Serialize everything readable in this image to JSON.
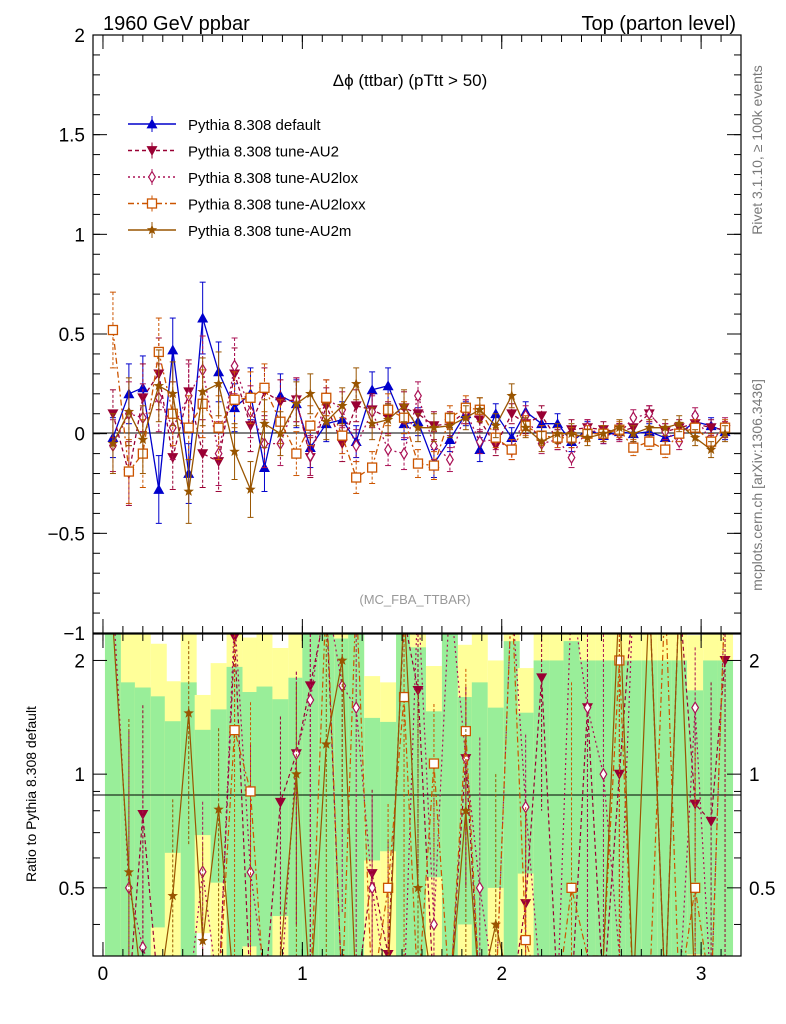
{
  "header": {
    "left": "1960 GeV ppbar",
    "right": "Top (parton level)"
  },
  "side": {
    "rivet": "Rivet 3.1.10, ≥ 100k events",
    "mcplots": "mcplots.cern.ch [arXiv:1306.3436]"
  },
  "chart_data": {
    "type": "line",
    "title": "Δϕ (ttbar) (pTtt > 50)",
    "watermark": "(MC_FBA_TTBAR)",
    "xlim": [
      -0.05,
      3.2
    ],
    "ylim": [
      -1.0,
      2.0
    ],
    "ratio_ylim": [
      0.33,
      2.35
    ],
    "ratio_ylabel": "Ratio to Pythia 8.308 default",
    "x_ticks": [
      "0",
      "1",
      "2",
      "3"
    ],
    "y_ticks": [
      "−1",
      "−0.5",
      "0",
      "0.5",
      "1",
      "1.5",
      "2"
    ],
    "ratio_ticks": [
      "0.5",
      "1",
      "2"
    ],
    "x": [
      0.05,
      0.13,
      0.2,
      0.28,
      0.35,
      0.43,
      0.5,
      0.58,
      0.66,
      0.74,
      0.81,
      0.89,
      0.97,
      1.04,
      1.12,
      1.2,
      1.27,
      1.35,
      1.43,
      1.51,
      1.58,
      1.66,
      1.74,
      1.82,
      1.89,
      1.97,
      2.05,
      2.12,
      2.2,
      2.28,
      2.35,
      2.43,
      2.51,
      2.59,
      2.66,
      2.74,
      2.82,
      2.89,
      2.97,
      3.05,
      3.12
    ],
    "series": [
      {
        "name": "Pythia 8.308 default",
        "color": "#0000cc",
        "marker": "triangle-up",
        "dash": "",
        "values": [
          -0.02,
          0.2,
          0.23,
          -0.28,
          0.42,
          -0.2,
          0.58,
          0.31,
          0.13,
          0.2,
          -0.17,
          0.19,
          0.15,
          -0.07,
          0.05,
          0.07,
          -0.04,
          0.22,
          0.24,
          0.05,
          0.06,
          -0.15,
          -0.03,
          0.1,
          -0.08,
          0.1,
          -0.02,
          0.11,
          0.05,
          0.05,
          -0.04,
          0.02,
          -0.01,
          0.01,
          0.0,
          0.01,
          -0.02,
          0.0,
          0.06,
          0.04,
          0.01
        ],
        "errors": [
          0.1,
          0.15,
          0.16,
          0.17,
          0.16,
          0.15,
          0.18,
          0.15,
          0.12,
          0.13,
          0.12,
          0.11,
          0.12,
          0.1,
          0.09,
          0.09,
          0.08,
          0.09,
          0.09,
          0.08,
          0.07,
          0.07,
          0.06,
          0.06,
          0.06,
          0.05,
          0.05,
          0.05,
          0.05,
          0.05,
          0.05,
          0.04,
          0.04,
          0.04,
          0.04,
          0.04,
          0.04,
          0.04,
          0.04,
          0.04,
          0.04
        ]
      },
      {
        "name": "Pythia 8.308 tune-AU2",
        "color": "#990033",
        "marker": "triangle-down",
        "dash": "4,3",
        "values": [
          0.1,
          -0.2,
          0.18,
          0.3,
          -0.12,
          0.21,
          -0.1,
          -0.14,
          0.3,
          0.04,
          0.21,
          0.16,
          0.17,
          -0.12,
          0.14,
          -0.05,
          0.14,
          0.12,
          0.08,
          0.13,
          0.1,
          0.04,
          0.05,
          0.11,
          0.07,
          -0.06,
          0.1,
          0.05,
          0.09,
          -0.03,
          0.02,
          0.03,
          0.02,
          0.01,
          0.03,
          0.1,
          0.01,
          0.03,
          0.05,
          0.03,
          0.02
        ],
        "errors": [
          0.12,
          0.16,
          0.17,
          0.18,
          0.16,
          0.16,
          0.17,
          0.15,
          0.13,
          0.13,
          0.12,
          0.11,
          0.11,
          0.1,
          0.09,
          0.09,
          0.08,
          0.08,
          0.08,
          0.08,
          0.07,
          0.07,
          0.06,
          0.06,
          0.06,
          0.05,
          0.05,
          0.05,
          0.05,
          0.05,
          0.05,
          0.04,
          0.04,
          0.04,
          0.04,
          0.04,
          0.04,
          0.04,
          0.04,
          0.04,
          0.04
        ]
      },
      {
        "name": "Pythia 8.308 tune-AU2lox",
        "color": "#aa1155",
        "marker": "diamond",
        "dash": "2,3",
        "values": [
          -0.06,
          0.1,
          0.08,
          0.18,
          0.03,
          0.19,
          0.32,
          -0.1,
          0.34,
          0.11,
          -0.05,
          -0.05,
          0.17,
          -0.11,
          0.18,
          0.12,
          -0.06,
          0.11,
          -0.08,
          -0.1,
          0.19,
          -0.06,
          -0.13,
          0.11,
          -0.04,
          -0.03,
          -0.08,
          0.09,
          -0.05,
          -0.03,
          -0.12,
          0.03,
          -0.01,
          0.0,
          0.08,
          0.1,
          0.01,
          -0.04,
          0.09,
          -0.04,
          0.04
        ],
        "errors": [
          0.13,
          0.16,
          0.17,
          0.17,
          0.16,
          0.16,
          0.17,
          0.16,
          0.14,
          0.13,
          0.12,
          0.11,
          0.11,
          0.1,
          0.09,
          0.09,
          0.08,
          0.08,
          0.08,
          0.08,
          0.07,
          0.07,
          0.06,
          0.06,
          0.06,
          0.05,
          0.05,
          0.05,
          0.05,
          0.05,
          0.05,
          0.04,
          0.04,
          0.04,
          0.04,
          0.04,
          0.04,
          0.04,
          0.04,
          0.04,
          0.04
        ]
      },
      {
        "name": "Pythia 8.308 tune-AU2loxx",
        "color": "#cc5500",
        "marker": "square-open",
        "dash": "6,3,2,3",
        "values": [
          0.52,
          -0.19,
          -0.1,
          0.41,
          0.1,
          0.03,
          0.15,
          0.03,
          0.17,
          0.18,
          0.23,
          0.06,
          -0.1,
          0.04,
          0.18,
          -0.01,
          -0.22,
          -0.17,
          0.12,
          0.08,
          -0.15,
          -0.16,
          0.08,
          0.13,
          0.12,
          -0.02,
          -0.08,
          0.04,
          -0.01,
          -0.02,
          -0.02,
          0.0,
          0.0,
          0.02,
          -0.07,
          -0.04,
          -0.08,
          0.0,
          0.03,
          -0.04,
          0.03
        ],
        "errors": [
          0.19,
          0.16,
          0.17,
          0.17,
          0.16,
          0.16,
          0.17,
          0.16,
          0.14,
          0.13,
          0.12,
          0.11,
          0.11,
          0.1,
          0.09,
          0.09,
          0.08,
          0.08,
          0.08,
          0.08,
          0.07,
          0.07,
          0.06,
          0.06,
          0.06,
          0.05,
          0.05,
          0.05,
          0.05,
          0.05,
          0.05,
          0.04,
          0.04,
          0.04,
          0.04,
          0.04,
          0.04,
          0.04,
          0.04,
          0.04,
          0.04
        ]
      },
      {
        "name": "Pythia 8.308 tune-AU2m",
        "color": "#995500",
        "marker": "star",
        "dash": "",
        "values": [
          -0.05,
          0.11,
          -0.03,
          0.24,
          0.2,
          -0.29,
          0.21,
          0.25,
          -0.09,
          -0.28,
          0.05,
          0.0,
          0.15,
          0.2,
          0.06,
          0.14,
          0.25,
          0.05,
          0.07,
          0.14,
          0.03,
          0.03,
          0.04,
          0.08,
          0.12,
          0.04,
          0.19,
          0.03,
          -0.04,
          0.0,
          0.0,
          -0.02,
          0.0,
          0.03,
          0.0,
          0.03,
          0.03,
          0.05,
          -0.02,
          -0.08,
          0.0
        ],
        "errors": [
          0.15,
          0.17,
          0.17,
          0.18,
          0.16,
          0.16,
          0.17,
          0.16,
          0.14,
          0.14,
          0.12,
          0.11,
          0.11,
          0.1,
          0.09,
          0.09,
          0.08,
          0.08,
          0.08,
          0.08,
          0.07,
          0.07,
          0.06,
          0.06,
          0.06,
          0.06,
          0.06,
          0.05,
          0.05,
          0.05,
          0.05,
          0.04,
          0.04,
          0.04,
          0.04,
          0.04,
          0.04,
          0.04,
          0.04,
          0.04,
          0.04
        ]
      }
    ]
  }
}
